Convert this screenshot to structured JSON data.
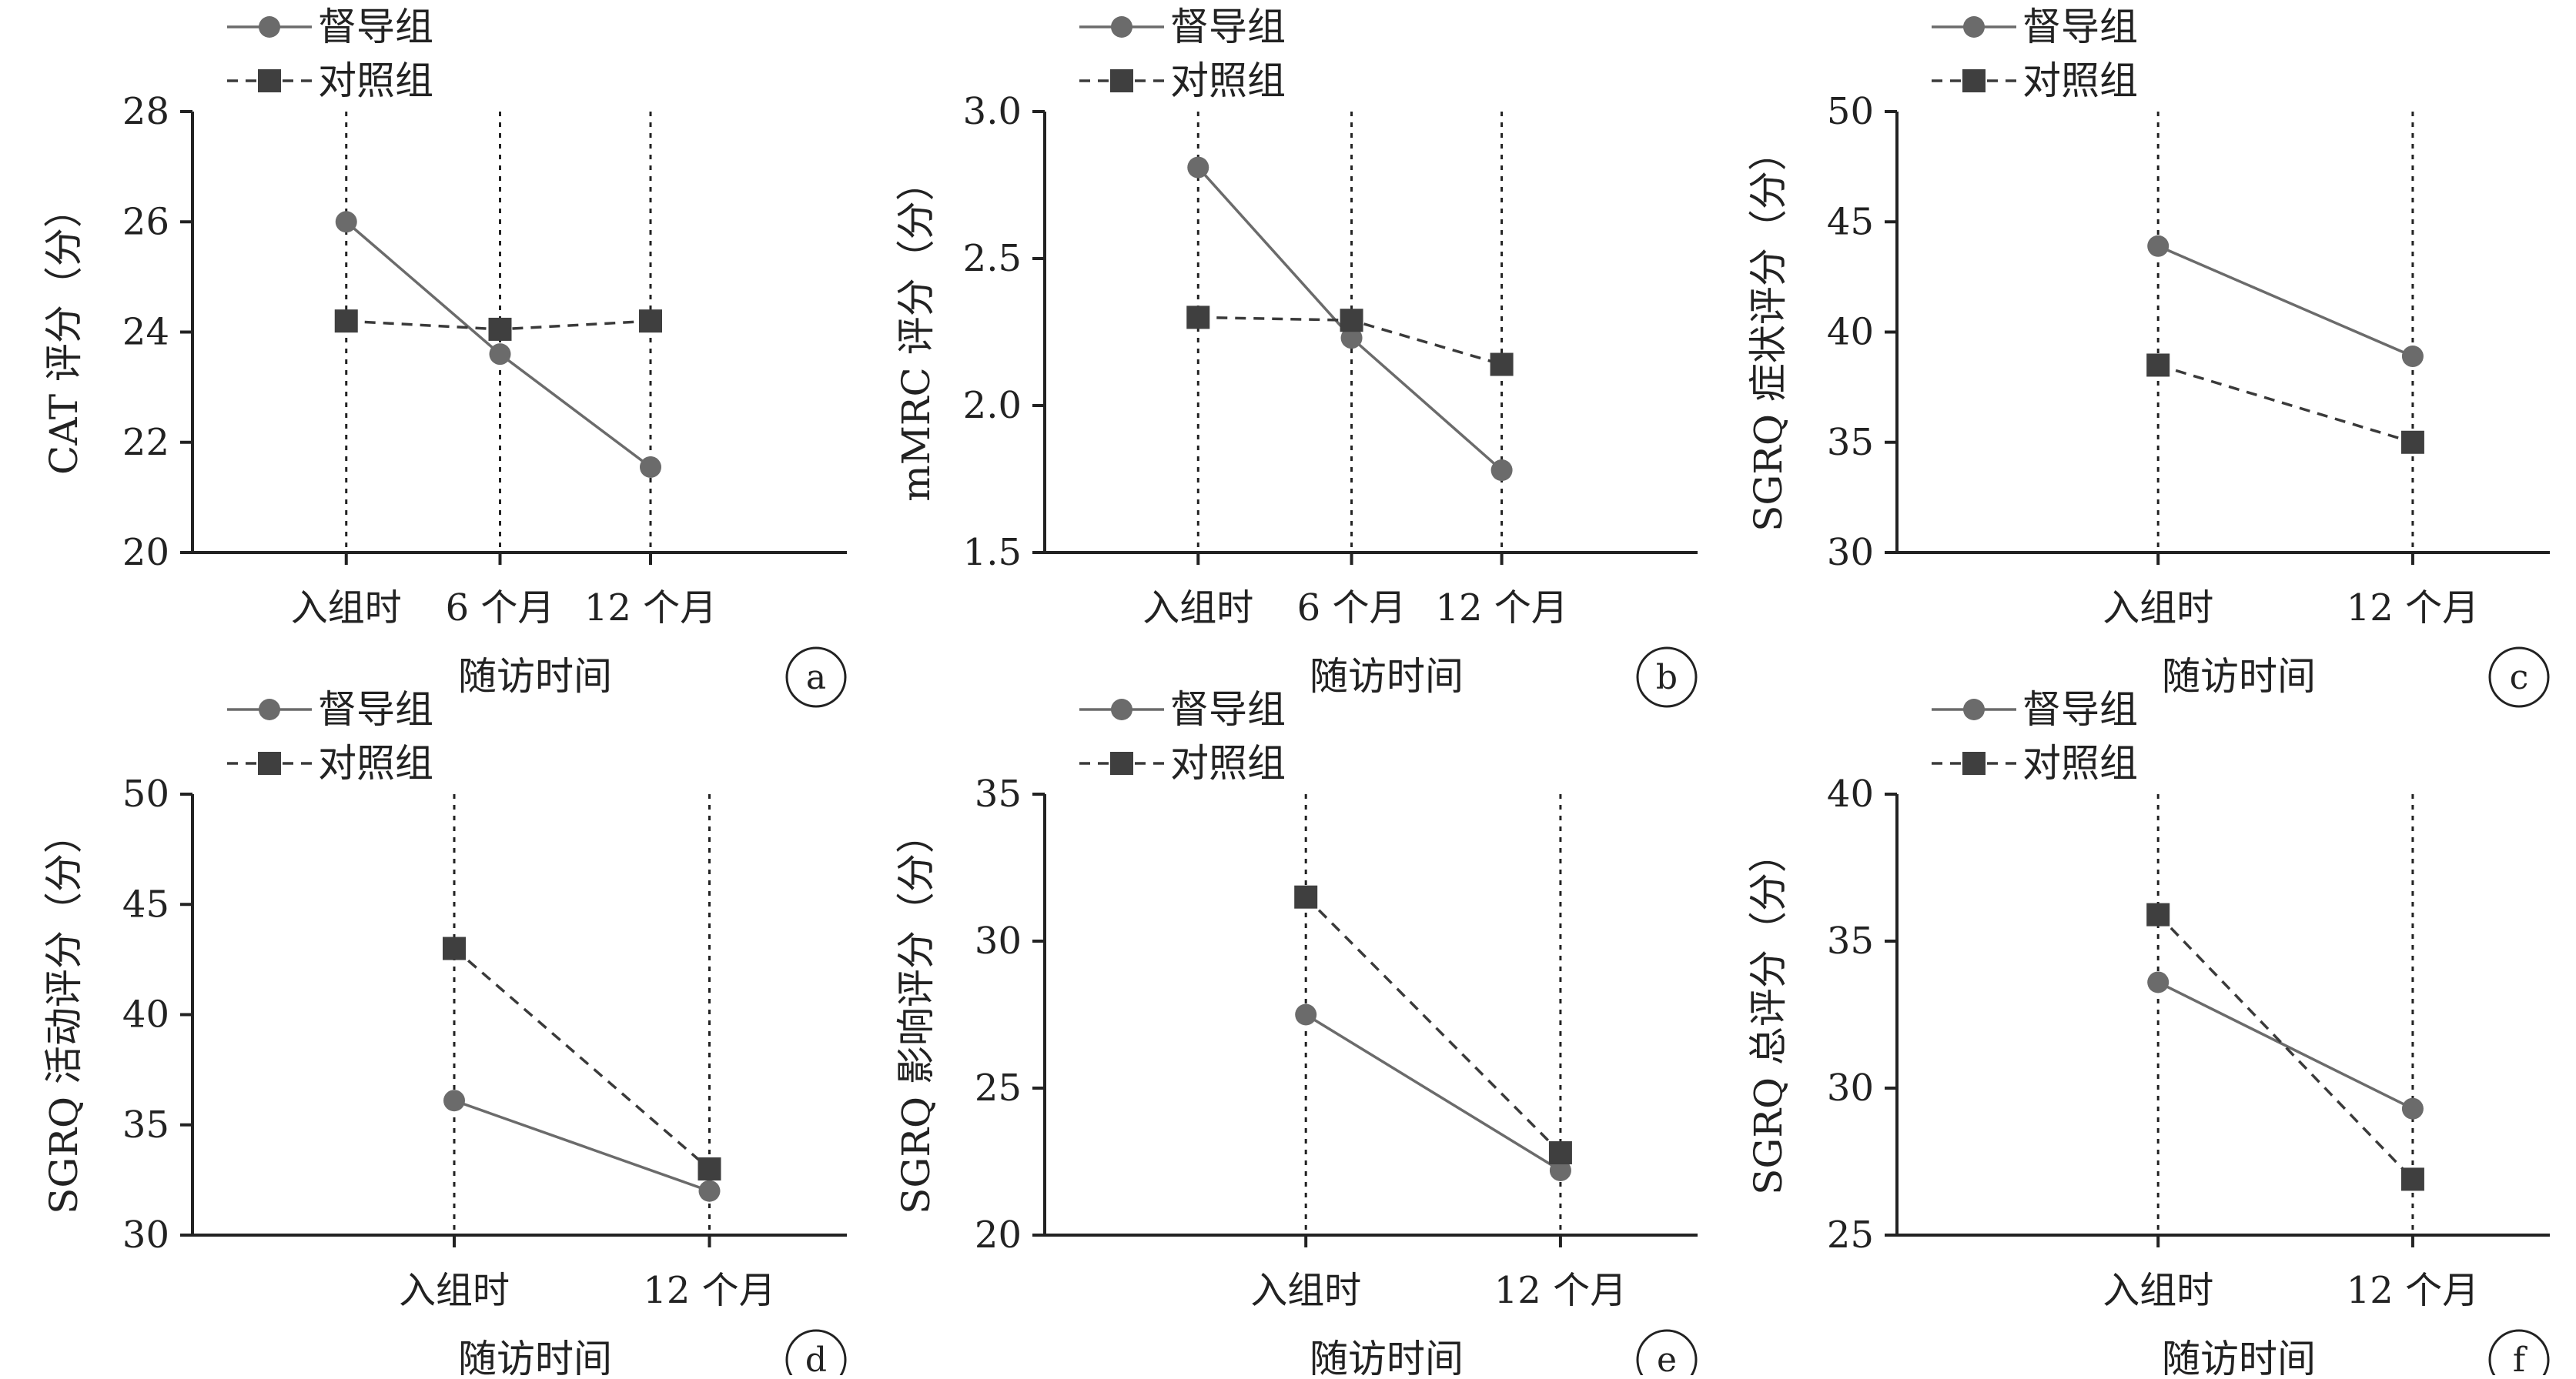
{
  "chart_data": [
    {
      "type": "line",
      "panel_label": "a",
      "categories": [
        "入组时",
        "6 个月",
        "12 个月"
      ],
      "xlabel": "随访时间",
      "ylabel": "CAT 评分（分）",
      "ylim": [
        20,
        28
      ],
      "yticks": [
        20,
        22,
        24,
        26,
        28
      ],
      "series": [
        {
          "name": "督导组",
          "values": [
            26.0,
            23.6,
            21.55
          ],
          "color": "#6b6b6b",
          "marker": "circle",
          "line": "solid"
        },
        {
          "name": "对照组",
          "values": [
            24.2,
            24.05,
            24.2
          ],
          "color": "#3f3f3f",
          "marker": "square",
          "line": "dashed"
        }
      ]
    },
    {
      "type": "line",
      "panel_label": "b",
      "categories": [
        "入组时",
        "6 个月",
        "12 个月"
      ],
      "xlabel": "随访时间",
      "ylabel": "mMRC 评分（分）",
      "ylim": [
        1.5,
        3.0
      ],
      "yticks": [
        "1.5",
        "2.0",
        "2.5",
        "3.0"
      ],
      "series": [
        {
          "name": "督导组",
          "values": [
            2.81,
            2.23,
            1.78
          ],
          "color": "#6b6b6b",
          "marker": "circle",
          "line": "solid"
        },
        {
          "name": "对照组",
          "values": [
            2.3,
            2.29,
            2.14
          ],
          "color": "#3f3f3f",
          "marker": "square",
          "line": "dashed"
        }
      ]
    },
    {
      "type": "line",
      "panel_label": "c",
      "categories": [
        "入组时",
        "12 个月"
      ],
      "xlabel": "随访时间",
      "ylabel": "SGRQ 症状评分（分）",
      "ylim": [
        30,
        50
      ],
      "yticks": [
        30,
        35,
        40,
        45,
        50
      ],
      "series": [
        {
          "name": "督导组",
          "values": [
            43.9,
            38.9
          ],
          "color": "#6b6b6b",
          "marker": "circle",
          "line": "solid"
        },
        {
          "name": "对照组",
          "values": [
            38.5,
            35.0
          ],
          "color": "#3f3f3f",
          "marker": "square",
          "line": "dashed"
        }
      ]
    },
    {
      "type": "line",
      "panel_label": "d",
      "categories": [
        "入组时",
        "12 个月"
      ],
      "xlabel": "随访时间",
      "ylabel": "SGRQ 活动评分（分）",
      "ylim": [
        30,
        50
      ],
      "yticks": [
        30,
        35,
        40,
        45,
        50
      ],
      "series": [
        {
          "name": "督导组",
          "values": [
            36.1,
            32.0
          ],
          "color": "#6b6b6b",
          "marker": "circle",
          "line": "solid"
        },
        {
          "name": "对照组",
          "values": [
            43.0,
            33.0
          ],
          "color": "#3f3f3f",
          "marker": "square",
          "line": "dashed"
        }
      ]
    },
    {
      "type": "line",
      "panel_label": "e",
      "categories": [
        "入组时",
        "12 个月"
      ],
      "xlabel": "随访时间",
      "ylabel": "SGRQ 影响评分（分）",
      "ylim": [
        20,
        35
      ],
      "yticks": [
        20,
        25,
        30,
        35
      ],
      "series": [
        {
          "name": "督导组",
          "values": [
            27.5,
            22.2
          ],
          "color": "#6b6b6b",
          "marker": "circle",
          "line": "solid"
        },
        {
          "name": "对照组",
          "values": [
            31.5,
            22.8
          ],
          "color": "#3f3f3f",
          "marker": "square",
          "line": "dashed"
        }
      ]
    },
    {
      "type": "line",
      "panel_label": "f",
      "categories": [
        "入组时",
        "12 个月"
      ],
      "xlabel": "随访时间",
      "ylabel": "SGRQ 总评分（分）",
      "ylim": [
        25,
        40
      ],
      "yticks": [
        25,
        30,
        35,
        40
      ],
      "series": [
        {
          "name": "督导组",
          "values": [
            33.6,
            29.3
          ],
          "color": "#6b6b6b",
          "marker": "circle",
          "line": "solid"
        },
        {
          "name": "对照组",
          "values": [
            35.9,
            26.9
          ],
          "color": "#3f3f3f",
          "marker": "square",
          "line": "dashed"
        }
      ]
    }
  ]
}
